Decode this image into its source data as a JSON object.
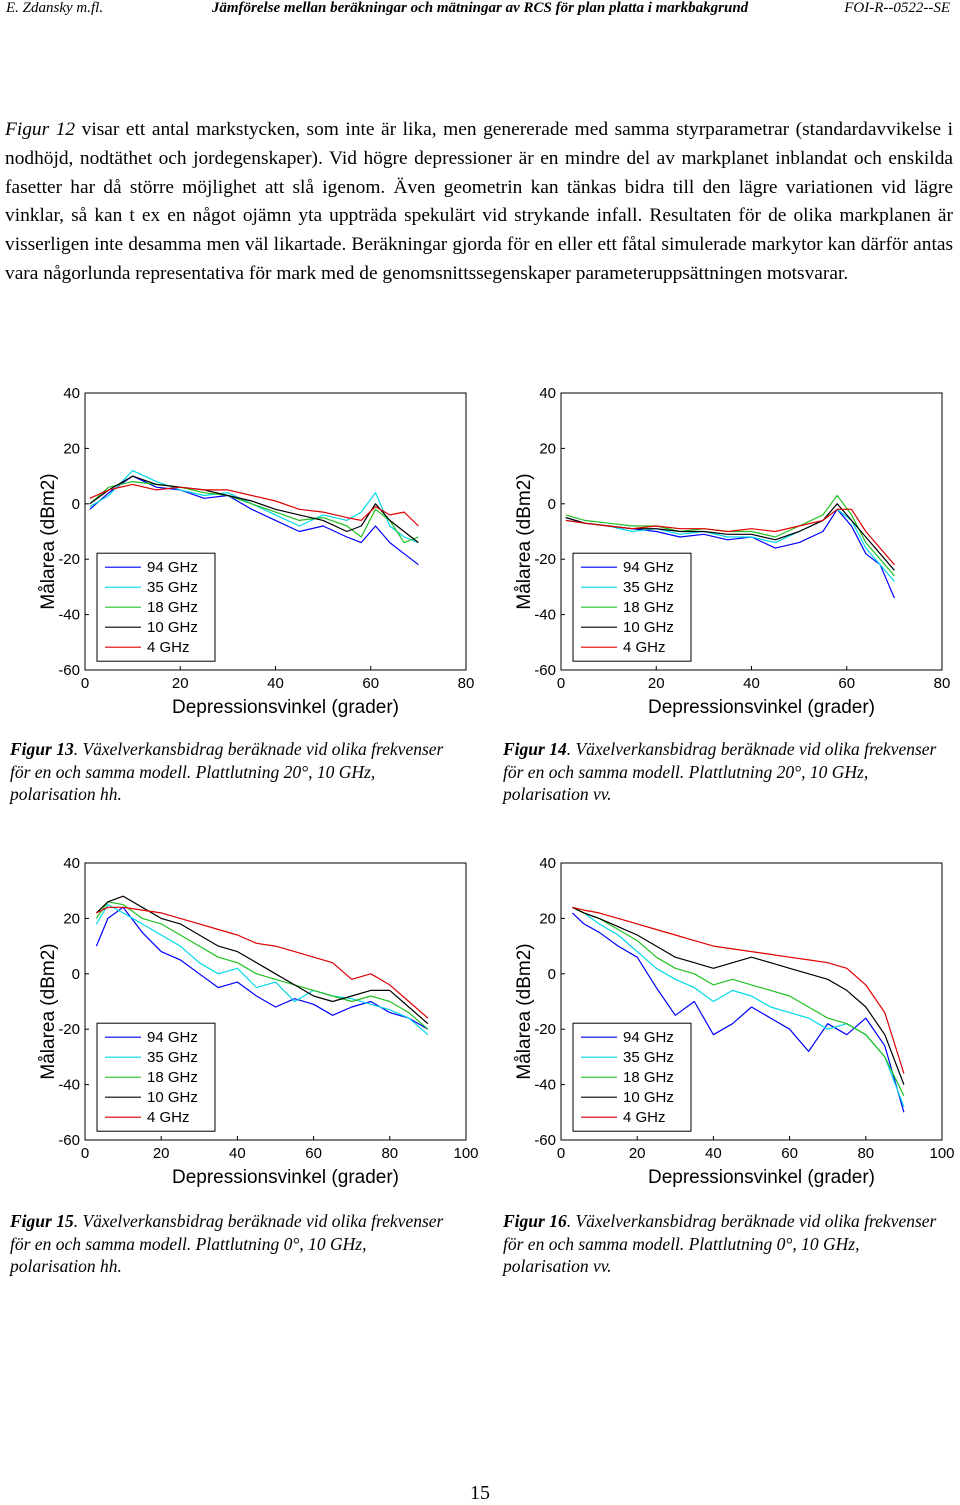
{
  "header": {
    "left": "E. Zdansky m.fl.",
    "center": "Jämförelse mellan beräkningar och mätningar av RCS för plan platta i markbakgrund",
    "right": "FOI-R--0522--SE"
  },
  "body": {
    "figref": "Figur 12",
    "text": " visar ett antal markstycken, som inte är lika, men genererade med samma styrparametrar (standardavvikelse i nodhöjd, nodtäthet och jordegenskaper). Vid högre depressioner är en mindre del av markplanet inblandat och enskilda fasetter har då större möjlighet att slå igenom. Även geometrin kan tänkas bidra till den lägre variationen vid lägre vinklar, så kan t ex en något ojämn yta uppträda spekulärt vid strykande infall. Resultaten för de olika markplanen är visserligen inte desamma men väl likartade. Beräkningar gjorda för en eller ett fåtal simulerade markytor kan därför antas vara någorlunda representativa för mark med de genomsnittssegenskaper parameteruppsättningen motsvarar."
  },
  "colors": {
    "94 GHz": "#0000ff",
    "35 GHz": "#00d8e8",
    "18 GHz": "#22c022",
    "10 GHz": "#000000",
    "4 GHz": "#e00000"
  },
  "chart_data": [
    {
      "id": "fig13",
      "type": "line",
      "xlabel": "Depressionsvinkel (grader)",
      "ylabel": "Målarea (dBm2)",
      "xlim": [
        0,
        80
      ],
      "ylim": [
        -60,
        40
      ],
      "xticks": [
        "0",
        "20",
        "40",
        "60",
        "80"
      ],
      "yticks": [
        "40",
        "20",
        "0",
        "-20",
        "-40",
        "-60"
      ],
      "legend": [
        "94 GHz",
        "35 GHz",
        "18 GHz",
        "10 GHz",
        "4 GHz"
      ],
      "series": [
        {
          "name": "94 GHz",
          "x": [
            1,
            5,
            10,
            15,
            20,
            25,
            30,
            35,
            40,
            45,
            50,
            55,
            58,
            61,
            64,
            67,
            70
          ],
          "y": [
            -2,
            4,
            10,
            6,
            5,
            2,
            3,
            -2,
            -6,
            -10,
            -8,
            -12,
            -14,
            -8,
            -14,
            -18,
            -22
          ]
        },
        {
          "name": "35 GHz",
          "x": [
            1,
            5,
            10,
            15,
            20,
            25,
            30,
            35,
            40,
            45,
            50,
            55,
            58,
            61,
            64,
            67,
            70
          ],
          "y": [
            -1,
            3,
            12,
            8,
            5,
            3,
            4,
            0,
            -4,
            -8,
            -4,
            -6,
            -3,
            4,
            -8,
            -12,
            -14
          ]
        },
        {
          "name": "18 GHz",
          "x": [
            1,
            5,
            10,
            15,
            20,
            25,
            30,
            35,
            40,
            45,
            50,
            55,
            58,
            61,
            64,
            67,
            70
          ],
          "y": [
            0,
            6,
            8,
            7,
            6,
            4,
            3,
            0,
            -3,
            -6,
            -5,
            -8,
            -12,
            -2,
            -6,
            -14,
            -12
          ]
        },
        {
          "name": "10 GHz",
          "x": [
            1,
            5,
            10,
            15,
            20,
            25,
            30,
            35,
            40,
            45,
            50,
            55,
            58,
            61,
            64,
            67,
            70
          ],
          "y": [
            0,
            5,
            10,
            7,
            6,
            5,
            3,
            1,
            -2,
            -4,
            -6,
            -10,
            -8,
            0,
            -6,
            -10,
            -14
          ]
        },
        {
          "name": "4 GHz",
          "x": [
            1,
            5,
            10,
            15,
            20,
            25,
            30,
            35,
            40,
            45,
            50,
            55,
            58,
            61,
            64,
            67,
            70
          ],
          "y": [
            2,
            5,
            7,
            5,
            6,
            5,
            5,
            3,
            1,
            -2,
            -3,
            -5,
            -6,
            -1,
            -4,
            -3,
            -8
          ]
        }
      ]
    },
    {
      "id": "fig14",
      "type": "line",
      "xlabel": "Depressionsvinkel (grader)",
      "ylabel": "Målarea (dBm2)",
      "xlim": [
        0,
        80
      ],
      "ylim": [
        -60,
        40
      ],
      "xticks": [
        "0",
        "20",
        "40",
        "60",
        "80"
      ],
      "yticks": [
        "40",
        "20",
        "0",
        "-20",
        "-40",
        "-60"
      ],
      "legend": [
        "94 GHz",
        "35 GHz",
        "18 GHz",
        "10 GHz",
        "4 GHz"
      ],
      "series": [
        {
          "name": "94 GHz",
          "x": [
            1,
            5,
            10,
            15,
            20,
            25,
            30,
            35,
            40,
            45,
            50,
            55,
            58,
            61,
            64,
            67,
            70
          ],
          "y": [
            -5,
            -7,
            -8,
            -9,
            -10,
            -12,
            -11,
            -13,
            -12,
            -16,
            -14,
            -10,
            -2,
            -8,
            -18,
            -22,
            -34
          ]
        },
        {
          "name": "35 GHz",
          "x": [
            1,
            5,
            10,
            15,
            20,
            25,
            30,
            35,
            40,
            45,
            50,
            55,
            58,
            61,
            64,
            67,
            70
          ],
          "y": [
            -6,
            -7,
            -8,
            -10,
            -9,
            -11,
            -10,
            -12,
            -12,
            -14,
            -10,
            -6,
            -2,
            -6,
            -16,
            -22,
            -28
          ]
        },
        {
          "name": "18 GHz",
          "x": [
            1,
            5,
            10,
            15,
            20,
            25,
            30,
            35,
            40,
            45,
            50,
            55,
            58,
            61,
            64,
            67,
            70
          ],
          "y": [
            -4,
            -6,
            -7,
            -8,
            -8,
            -10,
            -9,
            -10,
            -10,
            -12,
            -8,
            -4,
            3,
            -4,
            -14,
            -20,
            -26
          ]
        },
        {
          "name": "10 GHz",
          "x": [
            1,
            5,
            10,
            15,
            20,
            25,
            30,
            35,
            40,
            45,
            50,
            55,
            58,
            61,
            64,
            67,
            70
          ],
          "y": [
            -5,
            -7,
            -8,
            -9,
            -9,
            -10,
            -10,
            -11,
            -11,
            -13,
            -10,
            -6,
            0,
            -6,
            -12,
            -18,
            -24
          ]
        },
        {
          "name": "4 GHz",
          "x": [
            1,
            5,
            10,
            15,
            20,
            25,
            30,
            35,
            40,
            45,
            50,
            55,
            58,
            61,
            64,
            67,
            70
          ],
          "y": [
            -6,
            -7,
            -8,
            -9,
            -8,
            -9,
            -9,
            -10,
            -9,
            -10,
            -8,
            -6,
            -2,
            -2,
            -10,
            -16,
            -22
          ]
        }
      ]
    },
    {
      "id": "fig15",
      "type": "line",
      "xlabel": "Depressionsvinkel (grader)",
      "ylabel": "Målarea (dBm2)",
      "xlim": [
        0,
        100
      ],
      "ylim": [
        -60,
        40
      ],
      "xticks": [
        "0",
        "20",
        "40",
        "60",
        "80",
        "100"
      ],
      "yticks": [
        "40",
        "20",
        "0",
        "-20",
        "-40",
        "-60"
      ],
      "legend": [
        "94 GHz",
        "35 GHz",
        "18 GHz",
        "10 GHz",
        "4 GHz"
      ],
      "series": [
        {
          "name": "94 GHz",
          "x": [
            3,
            6,
            10,
            15,
            20,
            25,
            30,
            35,
            40,
            45,
            50,
            55,
            60,
            65,
            70,
            75,
            80,
            85,
            90
          ],
          "y": [
            10,
            20,
            24,
            15,
            8,
            5,
            0,
            -5,
            -3,
            -8,
            -12,
            -9,
            -11,
            -15,
            -12,
            -10,
            -14,
            -16,
            -20
          ]
        },
        {
          "name": "35 GHz",
          "x": [
            3,
            6,
            10,
            15,
            20,
            25,
            30,
            35,
            40,
            45,
            50,
            55,
            60,
            65,
            70,
            75,
            80,
            85,
            90
          ],
          "y": [
            18,
            25,
            22,
            18,
            14,
            10,
            4,
            0,
            2,
            -5,
            -3,
            -10,
            -6,
            -8,
            -9,
            -11,
            -13,
            -16,
            -22
          ]
        },
        {
          "name": "18 GHz",
          "x": [
            3,
            6,
            10,
            15,
            20,
            25,
            30,
            35,
            40,
            45,
            50,
            55,
            60,
            65,
            70,
            75,
            80,
            85,
            90
          ],
          "y": [
            20,
            26,
            25,
            20,
            18,
            14,
            10,
            6,
            4,
            0,
            -2,
            -4,
            -6,
            -8,
            -10,
            -8,
            -10,
            -14,
            -20
          ]
        },
        {
          "name": "10 GHz",
          "x": [
            3,
            6,
            10,
            15,
            20,
            25,
            30,
            35,
            40,
            45,
            50,
            55,
            60,
            65,
            70,
            75,
            80,
            85,
            90
          ],
          "y": [
            22,
            26,
            28,
            24,
            20,
            18,
            14,
            10,
            8,
            4,
            0,
            -4,
            -8,
            -10,
            -8,
            -6,
            -6,
            -12,
            -18
          ]
        },
        {
          "name": "4 GHz",
          "x": [
            3,
            6,
            10,
            15,
            20,
            25,
            30,
            35,
            40,
            45,
            50,
            55,
            60,
            65,
            70,
            75,
            80,
            85,
            90
          ],
          "y": [
            22,
            24,
            24,
            23,
            22,
            20,
            18,
            16,
            14,
            11,
            10,
            8,
            6,
            4,
            -2,
            0,
            -4,
            -10,
            -16
          ]
        }
      ]
    },
    {
      "id": "fig16",
      "type": "line",
      "xlabel": "Depressionsvinkel (grader)",
      "ylabel": "Målarea (dBm2)",
      "xlim": [
        0,
        100
      ],
      "ylim": [
        -60,
        40
      ],
      "xticks": [
        "0",
        "20",
        "40",
        "60",
        "80",
        "100"
      ],
      "yticks": [
        "40",
        "20",
        "0",
        "-20",
        "-40",
        "-60"
      ],
      "legend": [
        "94 GHz",
        "35 GHz",
        "18 GHz",
        "10 GHz",
        "4 GHz"
      ],
      "series": [
        {
          "name": "94 GHz",
          "x": [
            3,
            6,
            10,
            15,
            20,
            25,
            30,
            35,
            40,
            45,
            50,
            55,
            60,
            65,
            70,
            75,
            80,
            85,
            90
          ],
          "y": [
            22,
            18,
            15,
            10,
            6,
            -5,
            -15,
            -10,
            -22,
            -18,
            -12,
            -16,
            -20,
            -28,
            -18,
            -22,
            -16,
            -26,
            -50
          ]
        },
        {
          "name": "35 GHz",
          "x": [
            3,
            6,
            10,
            15,
            20,
            25,
            30,
            35,
            40,
            45,
            50,
            55,
            60,
            65,
            70,
            75,
            80,
            85,
            90
          ],
          "y": [
            24,
            22,
            18,
            14,
            8,
            2,
            -2,
            -5,
            -10,
            -6,
            -8,
            -12,
            -14,
            -16,
            -20,
            -18,
            -22,
            -30,
            -48
          ]
        },
        {
          "name": "18 GHz",
          "x": [
            3,
            6,
            10,
            15,
            20,
            25,
            30,
            35,
            40,
            45,
            50,
            55,
            60,
            65,
            70,
            75,
            80,
            85,
            90
          ],
          "y": [
            24,
            22,
            20,
            16,
            12,
            6,
            2,
            0,
            -4,
            -2,
            -4,
            -6,
            -8,
            -12,
            -16,
            -18,
            -22,
            -30,
            -44
          ]
        },
        {
          "name": "10 GHz",
          "x": [
            3,
            6,
            10,
            15,
            20,
            25,
            30,
            35,
            40,
            45,
            50,
            55,
            60,
            65,
            70,
            75,
            80,
            85,
            90
          ],
          "y": [
            24,
            22,
            20,
            17,
            14,
            10,
            6,
            4,
            2,
            4,
            6,
            4,
            2,
            0,
            -2,
            -6,
            -12,
            -22,
            -40
          ]
        },
        {
          "name": "4 GHz",
          "x": [
            3,
            6,
            10,
            15,
            20,
            25,
            30,
            35,
            40,
            45,
            50,
            55,
            60,
            65,
            70,
            75,
            80,
            85,
            90
          ],
          "y": [
            24,
            23,
            22,
            20,
            18,
            16,
            14,
            12,
            10,
            9,
            8,
            7,
            6,
            5,
            4,
            2,
            -4,
            -14,
            -36
          ]
        }
      ]
    }
  ],
  "captions": [
    {
      "num": "Figur 13",
      "text": ". Växelverkansbidrag beräknade vid olika frekvenser för en och samma modell. Plattlutning 20°, 10 GHz, polarisation hh."
    },
    {
      "num": "Figur 14",
      "text": ". Växelverkansbidrag beräknade vid olika frekvenser för en och samma modell. Plattlutning 20°, 10 GHz, polarisation vv."
    },
    {
      "num": "Figur 15",
      "text": ". Växelverkansbidrag beräknade vid olika frekvenser för en och samma modell. Plattlutning 0°, 10 GHz, polarisation hh."
    },
    {
      "num": "Figur 16",
      "text": ". Växelverkansbidrag beräknade vid olika frekvenser för en och samma modell. Plattlutning 0°, 10 GHz, polarisation vv."
    }
  ],
  "page_number": "15"
}
